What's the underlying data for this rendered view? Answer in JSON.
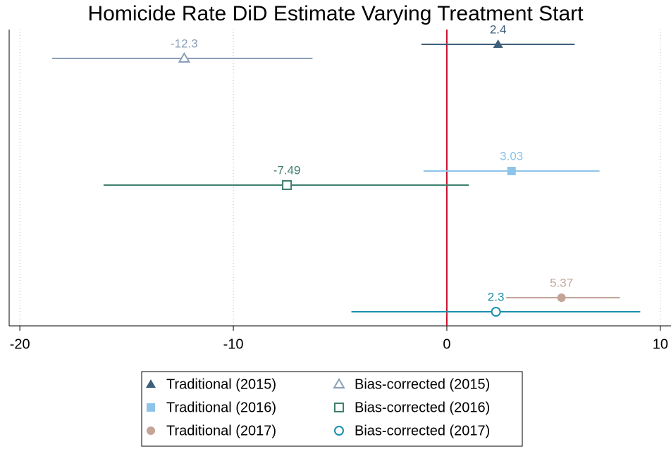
{
  "chart_data": {
    "type": "coefplot",
    "title": "Homicide Rate DiD Estimate Varying Treatment Start",
    "xlim": [
      -20.5,
      10.5
    ],
    "xticks": [
      -20,
      -10,
      0,
      10
    ],
    "grid": true,
    "refline": 0,
    "refline_color": "#c8102e",
    "series": [
      {
        "name": "Traditional (2015)",
        "color": "#3e5f7a",
        "marker": "triangle",
        "value": 2.4,
        "ci": [
          -1.19,
          5.99
        ]
      },
      {
        "name": "Bias-corrected (2015)",
        "color": "#8a9fb8",
        "marker": "triangle-open",
        "value": -12.3,
        "ci": [
          -18.49,
          -6.29
        ]
      },
      {
        "name": "Traditional (2016)",
        "color": "#8ec4ea",
        "marker": "square",
        "value": 3.03,
        "ci": [
          -1.09,
          7.15
        ]
      },
      {
        "name": "Bias-corrected (2016)",
        "color": "#3f7f6f",
        "marker": "square-open",
        "value": -7.49,
        "ci": [
          -16.08,
          1.03
        ]
      },
      {
        "name": "Traditional (2017)",
        "color": "#c3a497",
        "marker": "circle",
        "value": 5.37,
        "ci": [
          2.78,
          8.1
        ]
      },
      {
        "name": "Bias-corrected (2017)",
        "color": "#1a8fb0",
        "marker": "circle-open",
        "value": 2.3,
        "ci": [
          -4.47,
          9.06
        ]
      }
    ]
  }
}
